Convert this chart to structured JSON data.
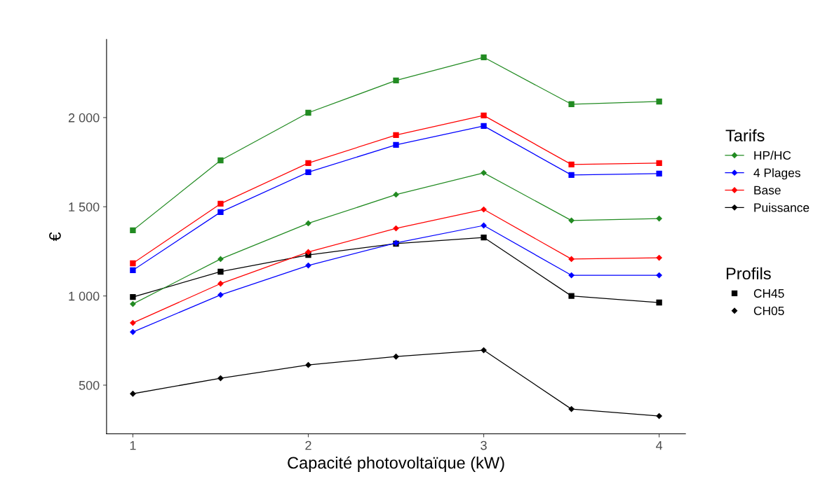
{
  "chart_data": {
    "type": "line",
    "xlabel": "Capacité photovoltaïque (kW)",
    "ylabel": "€",
    "x": [
      1,
      1.5,
      2,
      2.5,
      3,
      3.5,
      4
    ],
    "xlim": [
      0.85,
      4.15
    ],
    "xticks": [
      1,
      2,
      3,
      4
    ],
    "ylim": [
      227,
      2438
    ],
    "yticks": [
      {
        "value": 500,
        "label": "500"
      },
      {
        "value": 1000,
        "label": "1 000"
      },
      {
        "value": 1500,
        "label": "1 500"
      },
      {
        "value": 2000,
        "label": "2 000"
      }
    ],
    "grid": false,
    "legend": "right",
    "legend_title": "Tarifs",
    "annotations": [
      "Profils",
      "CH45",
      "CH05"
    ],
    "series": [
      {
        "color": "#228b22",
        "marker": "square",
        "values": [
          1368,
          1760,
          2027,
          2208,
          2338,
          2075,
          2090
        ]
      },
      {
        "color": "#0000ff",
        "marker": "square",
        "values": [
          1144,
          1470,
          1694,
          1847,
          1953,
          1678,
          1686
        ]
      },
      {
        "color": "#ff0000",
        "marker": "square",
        "values": [
          1183,
          1517,
          1745,
          1902,
          2012,
          1737,
          1745
        ]
      },
      {
        "color": "#000000",
        "marker": "square",
        "values": [
          994,
          1136,
          1230,
          1293,
          1328,
          1000,
          963
        ]
      },
      {
        "name": "HP/HC",
        "color": "#228b22",
        "marker": "diamond",
        "values": [
          955,
          1207,
          1407,
          1568,
          1690,
          1423,
          1434
        ]
      },
      {
        "name": "4 Plages",
        "color": "#0000ff",
        "marker": "diamond",
        "values": [
          798,
          1006,
          1171,
          1297,
          1395,
          1116,
          1116
        ]
      },
      {
        "name": "Base",
        "color": "#ff0000",
        "marker": "diamond",
        "values": [
          849,
          1069,
          1246,
          1379,
          1485,
          1207,
          1214
        ]
      },
      {
        "name": "Puissance",
        "color": "#000000",
        "marker": "diamond",
        "values": [
          452,
          539,
          613,
          660,
          696,
          366,
          327
        ]
      }
    ]
  }
}
